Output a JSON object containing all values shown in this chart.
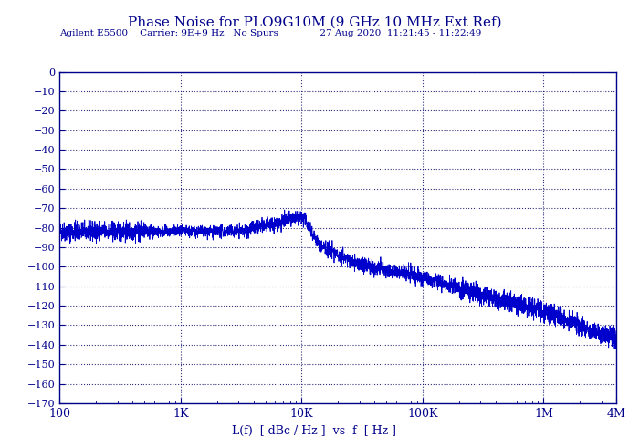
{
  "title": "Phase Noise for PLO9G10M (9 GHz 10 MHz Ext Ref)",
  "subtitle": "Agilent E5500    Carrier: 9E+9 Hz   No Spurs              27 Aug 2020  11:21:45 - 11:22:49",
  "xlabel": "L(f)  [ dBc / Hz ]  vs  f  [ Hz ]",
  "title_color": "#00008B",
  "subtitle_color": "#00008B",
  "line_color": "#0000CD",
  "axis_color": "#00008B",
  "label_color": "#00008B",
  "background_color": "#FFFFFF",
  "grid_color": "#191970",
  "xlim_log": [
    100,
    4000000
  ],
  "ylim": [
    -170,
    0
  ],
  "yticks": [
    0,
    -10,
    -20,
    -30,
    -40,
    -50,
    -60,
    -70,
    -80,
    -90,
    -100,
    -110,
    -120,
    -130,
    -140,
    -150,
    -160,
    -170
  ],
  "xtick_labels": [
    "100",
    "1K",
    "10K",
    "100K",
    "1M",
    "4M"
  ],
  "xtick_positions": [
    100,
    1000,
    10000,
    100000,
    1000000,
    4000000
  ],
  "title_fontsize": 11,
  "subtitle_fontsize": 7.5,
  "tick_fontsize": 8,
  "xlabel_fontsize": 9
}
